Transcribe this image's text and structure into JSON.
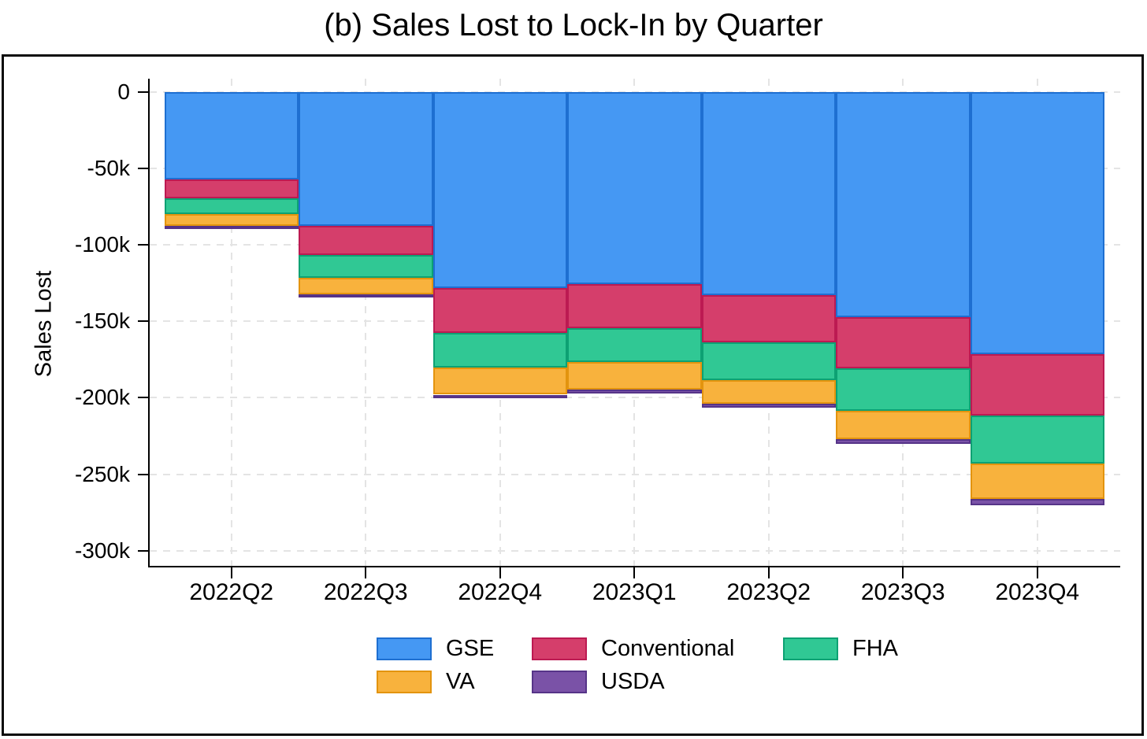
{
  "title": "(b) Sales Lost to Lock-In by Quarter",
  "chart_data": {
    "type": "bar",
    "subtype": "stacked-vertical-negative",
    "title": "(b) Sales Lost to Lock-In by Quarter",
    "xlabel": "",
    "ylabel": "Sales Lost",
    "units": "sales (thousands), plotted as negative values",
    "categories": [
      "2022Q2",
      "2022Q3",
      "2022Q4",
      "2023Q1",
      "2023Q2",
      "2023Q3",
      "2023Q4"
    ],
    "series": [
      {
        "name": "GSE",
        "fill": "#4598F3",
        "border": "#1E6FD1",
        "values_k": [
          -57.5,
          -87.5,
          -128.5,
          -125.5,
          -133,
          -147.5,
          -171.5
        ]
      },
      {
        "name": "Conventional",
        "fill": "#D53E6B",
        "border": "#BC1A52",
        "values_k": [
          -12,
          -19,
          -29,
          -29,
          -31,
          -33.5,
          -40
        ]
      },
      {
        "name": "FHA",
        "fill": "#30C894",
        "border": "#0DA173",
        "values_k": [
          -10.5,
          -15,
          -23,
          -22,
          -24.5,
          -27.5,
          -31.5
        ]
      },
      {
        "name": "VA",
        "fill": "#F8B23D",
        "border": "#E3940E",
        "values_k": [
          -7.5,
          -11,
          -17.5,
          -18,
          -15.5,
          -18.5,
          -23
        ]
      },
      {
        "name": "USDA",
        "fill": "#7A52A7",
        "border": "#563488",
        "values_k": [
          -1.5,
          -2,
          -2.5,
          -2.5,
          -2.5,
          -3,
          -4
        ]
      }
    ],
    "stack_totals_k": [
      -89,
      -134.5,
      -200.5,
      -197,
      -206.5,
      -230,
      -270
    ],
    "y_ticks_k": [
      0,
      -50,
      -100,
      -150,
      -200,
      -250,
      -300
    ],
    "y_tick_labels": [
      "0",
      "-50k",
      "-100k",
      "-150k",
      "-200k",
      "-250k",
      "-300k"
    ],
    "ylim_k": [
      -300,
      0
    ],
    "grid": true,
    "grid_style": "light-gray-dashed",
    "legend_position": "bottom",
    "legend_rows": [
      [
        "GSE",
        "Conventional",
        "FHA"
      ],
      [
        "VA",
        "USDA"
      ]
    ]
  },
  "colors": {
    "background": "#ffffff",
    "frame_border": "#0a0a0a",
    "axis": "#000000",
    "text": "#000000",
    "gridline": "#e4e4e4"
  }
}
